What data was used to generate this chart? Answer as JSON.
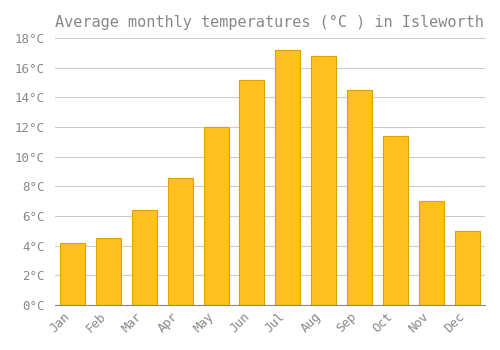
{
  "title": "Average monthly temperatures (°C ) in Isleworth",
  "months": [
    "Jan",
    "Feb",
    "Mar",
    "Apr",
    "May",
    "Jun",
    "Jul",
    "Aug",
    "Sep",
    "Oct",
    "Nov",
    "Dec"
  ],
  "values": [
    4.2,
    4.5,
    6.4,
    8.6,
    12.0,
    15.2,
    17.2,
    16.8,
    14.5,
    11.4,
    7.0,
    5.0
  ],
  "bar_color": "#FFC020",
  "bar_edge_color": "#E8A000",
  "background_color": "#FFFFFF",
  "grid_color": "#CCCCCC",
  "text_color": "#888888",
  "ylim": [
    0,
    18
  ],
  "yticks": [
    0,
    2,
    4,
    6,
    8,
    10,
    12,
    14,
    16,
    18
  ],
  "title_fontsize": 11,
  "tick_fontsize": 9,
  "font_family": "monospace"
}
